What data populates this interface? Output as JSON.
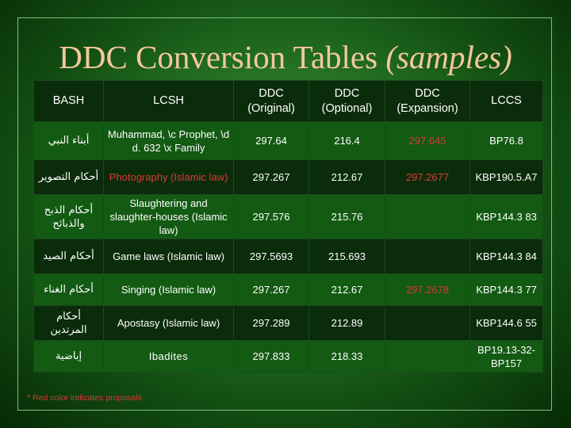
{
  "title": {
    "main": "DDC Conversion Tables ",
    "italic": "(samples)"
  },
  "table": {
    "headers": {
      "bash": "BASH",
      "lcsh": "LCSH",
      "ddc_original": "DDC (Original)",
      "ddc_optional": "DDC (Optional)",
      "ddc_expansion": "DDC (Expansion)",
      "lccs": "LCCS"
    },
    "rows": [
      {
        "bash": "أبناء النبي",
        "lcsh": "Muhammad, \\c Prophet, \\d d. 632 \\x Family",
        "ddc_original": "297.64",
        "ddc_optional": "216.4",
        "ddc_expansion": "297.645",
        "lccs": "BP76.8"
      },
      {
        "bash": "أحكام التصوير",
        "lcsh": "Photography (Islamic law)",
        "ddc_original": "297.267",
        "ddc_optional": "212.67",
        "ddc_expansion": "297.2677",
        "lccs": "KBP190.5.A7"
      },
      {
        "bash": "أحكام الذبح والذبائح",
        "lcsh": "Slaughtering and slaughter-houses (Islamic law)",
        "ddc_original": "297.576",
        "ddc_optional": "215.76",
        "ddc_expansion": "",
        "lccs": "KBP144.3 83"
      },
      {
        "bash": "أحكام الصيد",
        "lcsh": "Game laws (Islamic law)",
        "ddc_original": "297.5693",
        "ddc_optional": "215.693",
        "ddc_expansion": "",
        "lccs": "KBP144.3 84"
      },
      {
        "bash": "أحكام الغناء",
        "lcsh": "Singing (Islamic law)",
        "ddc_original": "297.267",
        "ddc_optional": "212.67",
        "ddc_expansion": "297.2678",
        "lccs": "KBP144.3 77"
      },
      {
        "bash": "أحكام المرتدين",
        "lcsh": "Apostasy (Islamic law)",
        "ddc_original": "297.289",
        "ddc_optional": "212.89",
        "ddc_expansion": "",
        "lccs": "KBP144.6 55"
      },
      {
        "bash": "إباضية",
        "lcsh": "Ibadites",
        "ddc_original": "297.833",
        "ddc_optional": "218.33",
        "ddc_expansion": "",
        "lccs": "BP19.13-32-BP157"
      }
    ]
  },
  "footnote": "* Red color indicates proposals",
  "colors": {
    "title": "#f3c89c",
    "proposal": "#d83a3a",
    "text": "#ffffff"
  }
}
